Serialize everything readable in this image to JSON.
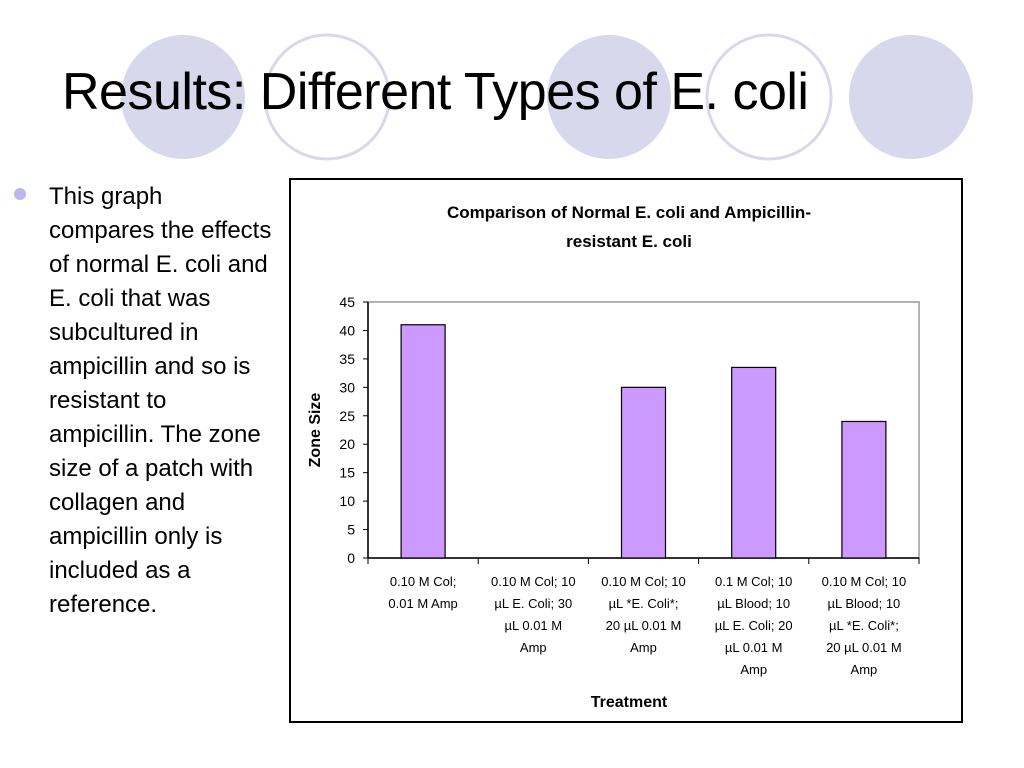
{
  "slide": {
    "title": "Results: Different Types of E. coli",
    "bullet": "This graph compares the effects of normal E. coli and E. coli that was subcultured in ampicillin and so is resistant to ampicillin.  The zone size of a patch with collagen and ampicillin only is included as a reference.",
    "bullet_color": "#b8b8f0",
    "decor_circle_color": "#d8d8ec"
  },
  "chart_data": {
    "type": "bar",
    "title_lines": [
      "Comparison of Normal E. coli and Ampicillin-",
      "resistant E. coli"
    ],
    "xlabel": "Treatment",
    "ylabel": "Zone Size",
    "ylim": [
      0,
      45
    ],
    "yticks": [
      0,
      5,
      10,
      15,
      20,
      25,
      30,
      35,
      40,
      45
    ],
    "grid": false,
    "legend": "none",
    "bar_color": "#cc99ff",
    "categories": [
      [
        "0.10 M Col;",
        "0.01 M Amp"
      ],
      [
        "0.10 M Col; 10",
        "µL E. Coli; 30",
        "µL 0.01 M",
        "Amp"
      ],
      [
        "0.10 M Col; 10",
        "µL *E. Coli*;",
        "20 µL 0.01 M",
        "Amp"
      ],
      [
        "0.1 M Col; 10",
        "µL Blood; 10",
        "µL E. Coli; 20",
        "µL 0.01 M",
        "Amp"
      ],
      [
        "0.10 M Col; 10",
        "µL Blood; 10",
        "µL *E. Coli*;",
        "20 µL 0.01 M",
        "Amp"
      ]
    ],
    "values": [
      41,
      0,
      30,
      33.5,
      24
    ]
  }
}
